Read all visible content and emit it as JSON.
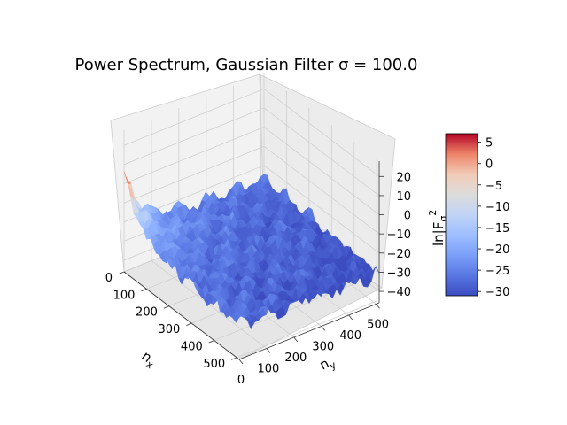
{
  "chart_data": {
    "type": "surface3d",
    "title": "Power Spectrum, Gaussian Filter σ = 100.0",
    "x": {
      "label": "n",
      "label_sub": "x",
      "range": [
        0,
        511
      ],
      "ticks": [
        "0",
        "100",
        "200",
        "300",
        "400",
        "500"
      ]
    },
    "y": {
      "label": "n",
      "label_sub": "y",
      "range": [
        0,
        511
      ],
      "ticks": [
        "0",
        "100",
        "200",
        "300",
        "400",
        "500"
      ]
    },
    "z": {
      "label": "ln|F",
      "label_sub": "σ",
      "label_sup": "2",
      "range": [
        -46,
        28
      ],
      "ticks": [
        "−40",
        "−30",
        "−20",
        "−10",
        "0",
        "10",
        "20"
      ]
    },
    "colorbar": {
      "colormap": "coolwarm",
      "range": [
        -31,
        7
      ],
      "ticks": [
        "−30",
        "−25",
        "−20",
        "−15",
        "−10",
        "−5",
        "0",
        "5"
      ]
    },
    "surface_profile": {
      "peak_at": [
        0,
        0
      ],
      "peak_value": 7,
      "baseline": -24,
      "far_corner_value": -31,
      "noise_amplitude": 6,
      "periodic_cells_per_axis": 5,
      "grid": "on"
    }
  }
}
